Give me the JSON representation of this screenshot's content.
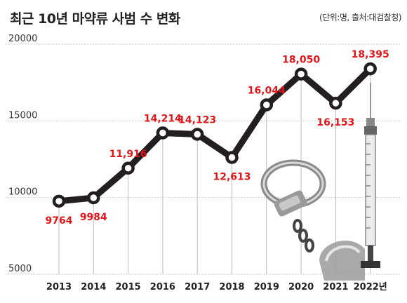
{
  "header": {
    "title": "최근 10년 마약류 사범 수 변화",
    "source": "(단위:명, 출처:대검찰청)"
  },
  "colors": {
    "line": "#231f20",
    "label": "#e0161b",
    "grid": "#bbbbbb"
  },
  "illustrations": [
    "handcuffs-image",
    "syringe-image"
  ],
  "chart_data": {
    "type": "line",
    "categories": [
      "2013",
      "2014",
      "2015",
      "2016",
      "2017",
      "2018",
      "2019",
      "2020",
      "2021",
      "2022년"
    ],
    "values": [
      9764,
      9984,
      11916,
      14214,
      14123,
      12613,
      16044,
      18050,
      16153,
      18395
    ],
    "value_labels": [
      "9764",
      "9984",
      "11,916",
      "14,214",
      "14,123",
      "12,613",
      "16,044",
      "18,050",
      "16,153",
      "18,395"
    ],
    "label_position": [
      "below",
      "below",
      "above",
      "above",
      "above",
      "below",
      "above",
      "above",
      "below",
      "above"
    ],
    "yticks": [
      "5000",
      "10000",
      "15000",
      "20000"
    ],
    "ylim": [
      5000,
      20000
    ],
    "grid": "horizontal dotted",
    "title": "최근 10년 마약류 사범 수 변화",
    "xlabel": "",
    "ylabel": ""
  }
}
